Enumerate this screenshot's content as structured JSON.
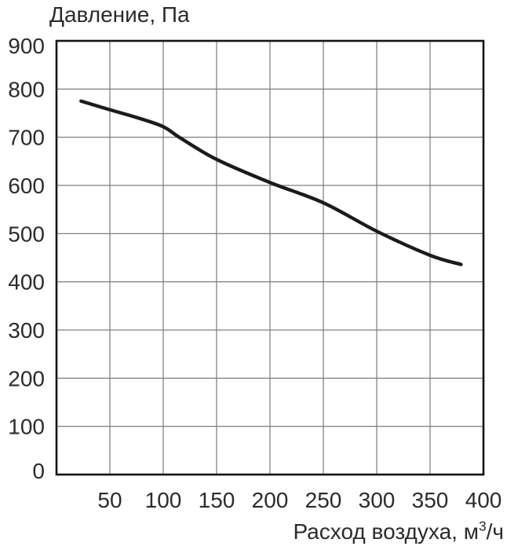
{
  "chart_data": {
    "type": "line",
    "title": "",
    "ylabel": "Давление, Па",
    "xlabel": "Расход воздуха, м³/ч",
    "xlabel_parts": {
      "pre": "Расход воздуха, м",
      "sup": "3",
      "post": "/ч"
    },
    "xlim": [
      0,
      400
    ],
    "ylim": [
      0,
      900
    ],
    "x_ticks": [
      50,
      100,
      150,
      200,
      250,
      300,
      350,
      400
    ],
    "y_ticks": [
      0,
      100,
      200,
      300,
      400,
      500,
      600,
      700,
      800,
      900
    ],
    "grid": true,
    "legend": "none",
    "series": [
      {
        "name": "pressure-vs-airflow-curve",
        "x": [
          23,
          50,
          75,
          100,
          115,
          150,
          200,
          250,
          300,
          350,
          379
        ],
        "y": [
          775,
          757,
          741,
          722,
          700,
          654,
          606,
          564,
          505,
          455,
          436
        ]
      }
    ],
    "colors": {
      "curve": "#1b1b1b",
      "grid": "#7f7f7f",
      "border": "#141414",
      "text": "#2b2b2b",
      "background": "#ffffff"
    }
  }
}
